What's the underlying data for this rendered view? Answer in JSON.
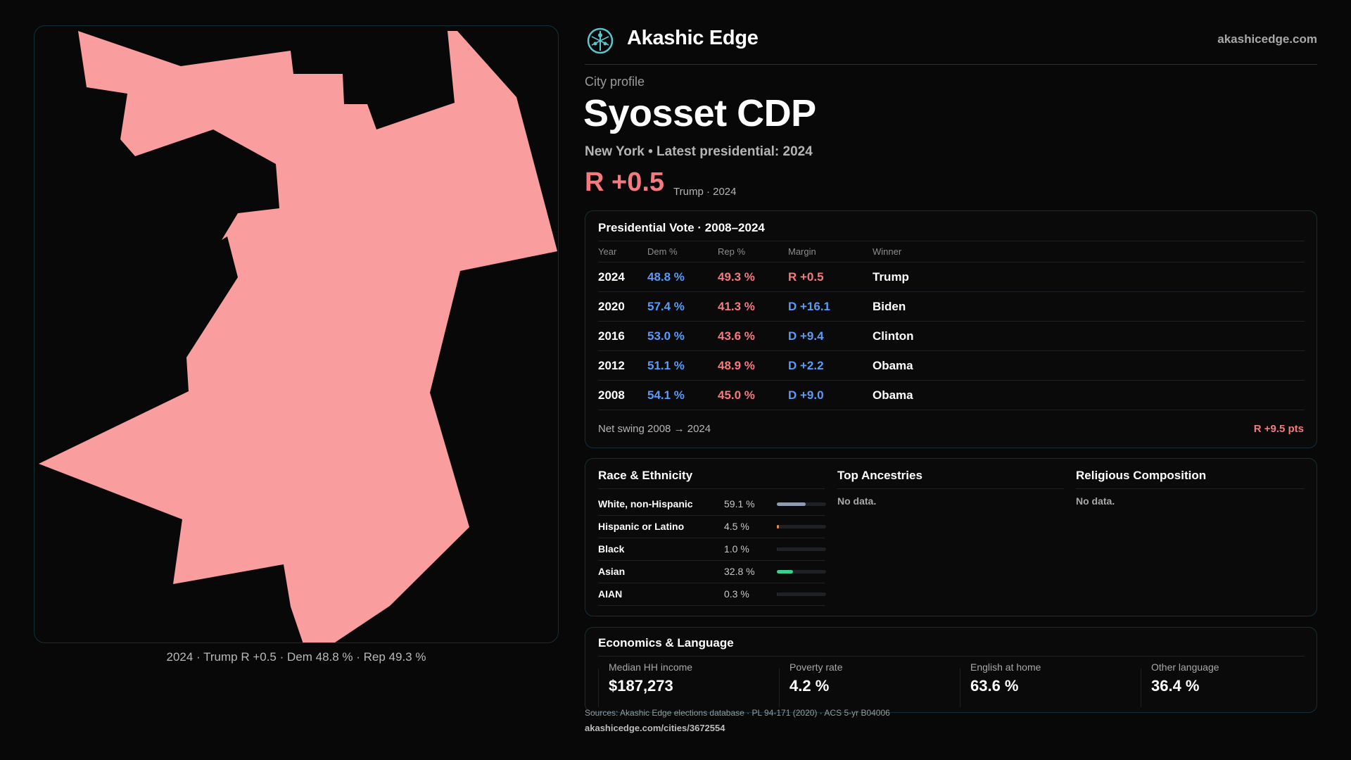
{
  "brand": {
    "name": "Akashic Edge",
    "url": "akashicedge.com",
    "logo_icon": "network-globe-icon",
    "accent": "#5cc6cf"
  },
  "profile": {
    "label": "City profile",
    "city": "Syosset CDP",
    "subtitle": "New York • Latest presidential: 2024",
    "margin": "R +0.5",
    "margin_note": "Trump · 2024"
  },
  "map": {
    "caption": "2024 · Trump R +0.5 · Dem 48.8 % · Rep 49.3 %",
    "fill_color": "#f99d9e"
  },
  "presidential": {
    "title": "Presidential Vote · 2008–2024",
    "headers": {
      "year": "Year",
      "dem": "Dem %",
      "rep": "Rep %",
      "margin": "Margin",
      "winner": "Winner"
    },
    "rows": [
      {
        "year": "2024",
        "dem": "48.8 %",
        "rep": "49.3 %",
        "margin": "R +0.5",
        "party": "R",
        "winner": "Trump"
      },
      {
        "year": "2020",
        "dem": "57.4 %",
        "rep": "41.3 %",
        "margin": "D +16.1",
        "party": "D",
        "winner": "Biden"
      },
      {
        "year": "2016",
        "dem": "53.0 %",
        "rep": "43.6 %",
        "margin": "D +9.4",
        "party": "D",
        "winner": "Clinton"
      },
      {
        "year": "2012",
        "dem": "51.1 %",
        "rep": "48.9 %",
        "margin": "D +2.2",
        "party": "D",
        "winner": "Obama"
      },
      {
        "year": "2008",
        "dem": "54.1 %",
        "rep": "45.0 %",
        "margin": "D +9.0",
        "party": "D",
        "winner": "Obama"
      }
    ],
    "swing_label": "Net swing 2008 → 2024",
    "swing_value": "R +9.5 pts",
    "colors": {
      "dem": "#5b9bf5",
      "rep": "#f47a80"
    }
  },
  "race": {
    "title": "Race & Ethnicity",
    "rows": [
      {
        "label": "White, non-Hispanic",
        "value": "59.1 %",
        "share": 0.591,
        "color": "#8e9bb0"
      },
      {
        "label": "Hispanic or Latino",
        "value": "4.5 %",
        "share": 0.045,
        "color": "#f0883e"
      },
      {
        "label": "Black",
        "value": "1.0 %",
        "share": 0.01,
        "color": "#2a2d31"
      },
      {
        "label": "Asian",
        "value": "32.8 %",
        "share": 0.328,
        "color": "#3ccf8e"
      },
      {
        "label": "AIAN",
        "value": "0.3 %",
        "share": 0.003,
        "color": "#2a2d31"
      }
    ]
  },
  "ancestries": {
    "title": "Top Ancestries",
    "empty": "No data."
  },
  "religion": {
    "title": "Religious Composition",
    "empty": "No data."
  },
  "economics": {
    "title": "Economics & Language",
    "stats": [
      {
        "label": "Median HH income",
        "value": "$187,273"
      },
      {
        "label": "Poverty rate",
        "value": "4.2 %"
      },
      {
        "label": "English at home",
        "value": "63.6 %"
      },
      {
        "label": "Other language",
        "value": "36.4 %"
      }
    ]
  },
  "footer": {
    "sources": "Sources: Akashic Edge elections database · PL 94-171 (2020) · ACS 5-yr B04006",
    "page_url": "akashicedge.com/cities/3672554"
  }
}
